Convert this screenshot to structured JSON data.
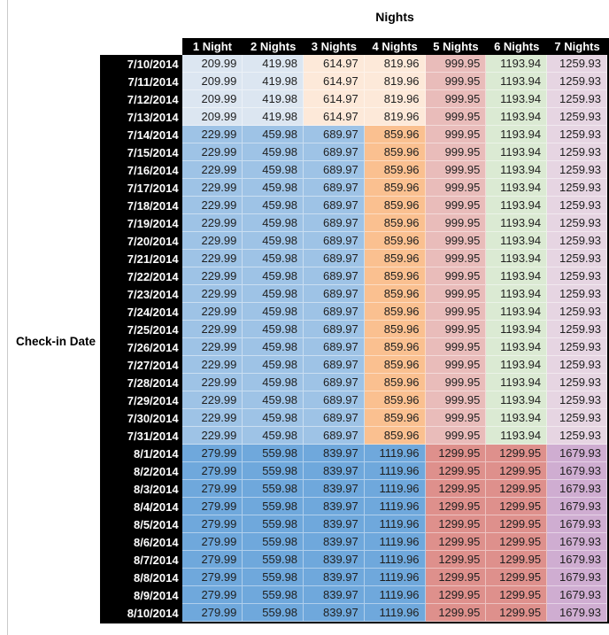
{
  "chart_data": {
    "type": "table",
    "title": "Nights",
    "row_axis_label": "Check-in Date",
    "columns": [
      "1 Night",
      "2 Nights",
      "3 Nights",
      "4 Nights",
      "5 Nights",
      "6 Nights",
      "7 Nights"
    ],
    "rows": [
      {
        "date": "7/10/2014",
        "band": "early_july",
        "values": [
          209.99,
          419.98,
          614.97,
          819.96,
          999.95,
          1193.94,
          1259.93
        ]
      },
      {
        "date": "7/11/2014",
        "band": "early_july",
        "values": [
          209.99,
          419.98,
          614.97,
          819.96,
          999.95,
          1193.94,
          1259.93
        ]
      },
      {
        "date": "7/12/2014",
        "band": "early_july",
        "values": [
          209.99,
          419.98,
          614.97,
          819.96,
          999.95,
          1193.94,
          1259.93
        ]
      },
      {
        "date": "7/13/2014",
        "band": "early_july",
        "values": [
          209.99,
          419.98,
          614.97,
          819.96,
          999.95,
          1193.94,
          1259.93
        ]
      },
      {
        "date": "7/14/2014",
        "band": "mid_july",
        "values": [
          229.99,
          459.98,
          689.97,
          859.96,
          999.95,
          1193.94,
          1259.93
        ]
      },
      {
        "date": "7/15/2014",
        "band": "mid_july",
        "values": [
          229.99,
          459.98,
          689.97,
          859.96,
          999.95,
          1193.94,
          1259.93
        ]
      },
      {
        "date": "7/16/2014",
        "band": "mid_july",
        "values": [
          229.99,
          459.98,
          689.97,
          859.96,
          999.95,
          1193.94,
          1259.93
        ]
      },
      {
        "date": "7/17/2014",
        "band": "mid_july",
        "values": [
          229.99,
          459.98,
          689.97,
          859.96,
          999.95,
          1193.94,
          1259.93
        ]
      },
      {
        "date": "7/18/2014",
        "band": "mid_july",
        "values": [
          229.99,
          459.98,
          689.97,
          859.96,
          999.95,
          1193.94,
          1259.93
        ]
      },
      {
        "date": "7/19/2014",
        "band": "mid_july",
        "values": [
          229.99,
          459.98,
          689.97,
          859.96,
          999.95,
          1193.94,
          1259.93
        ]
      },
      {
        "date": "7/20/2014",
        "band": "mid_july",
        "values": [
          229.99,
          459.98,
          689.97,
          859.96,
          999.95,
          1193.94,
          1259.93
        ]
      },
      {
        "date": "7/21/2014",
        "band": "mid_july",
        "values": [
          229.99,
          459.98,
          689.97,
          859.96,
          999.95,
          1193.94,
          1259.93
        ]
      },
      {
        "date": "7/22/2014",
        "band": "mid_july",
        "values": [
          229.99,
          459.98,
          689.97,
          859.96,
          999.95,
          1193.94,
          1259.93
        ]
      },
      {
        "date": "7/23/2014",
        "band": "mid_july",
        "values": [
          229.99,
          459.98,
          689.97,
          859.96,
          999.95,
          1193.94,
          1259.93
        ]
      },
      {
        "date": "7/24/2014",
        "band": "mid_july",
        "values": [
          229.99,
          459.98,
          689.97,
          859.96,
          999.95,
          1193.94,
          1259.93
        ]
      },
      {
        "date": "7/25/2014",
        "band": "mid_july",
        "values": [
          229.99,
          459.98,
          689.97,
          859.96,
          999.95,
          1193.94,
          1259.93
        ]
      },
      {
        "date": "7/26/2014",
        "band": "mid_july",
        "values": [
          229.99,
          459.98,
          689.97,
          859.96,
          999.95,
          1193.94,
          1259.93
        ]
      },
      {
        "date": "7/27/2014",
        "band": "mid_july",
        "values": [
          229.99,
          459.98,
          689.97,
          859.96,
          999.95,
          1193.94,
          1259.93
        ]
      },
      {
        "date": "7/28/2014",
        "band": "mid_july",
        "values": [
          229.99,
          459.98,
          689.97,
          859.96,
          999.95,
          1193.94,
          1259.93
        ]
      },
      {
        "date": "7/29/2014",
        "band": "mid_july",
        "values": [
          229.99,
          459.98,
          689.97,
          859.96,
          999.95,
          1193.94,
          1259.93
        ]
      },
      {
        "date": "7/30/2014",
        "band": "mid_july",
        "values": [
          229.99,
          459.98,
          689.97,
          859.96,
          999.95,
          1193.94,
          1259.93
        ]
      },
      {
        "date": "7/31/2014",
        "band": "mid_july",
        "values": [
          229.99,
          459.98,
          689.97,
          859.96,
          999.95,
          1193.94,
          1259.93
        ]
      },
      {
        "date": "8/1/2014",
        "band": "august",
        "values": [
          279.99,
          559.98,
          839.97,
          1119.96,
          1299.95,
          1299.95,
          1679.93
        ]
      },
      {
        "date": "8/2/2014",
        "band": "august",
        "values": [
          279.99,
          559.98,
          839.97,
          1119.96,
          1299.95,
          1299.95,
          1679.93
        ]
      },
      {
        "date": "8/3/2014",
        "band": "august",
        "values": [
          279.99,
          559.98,
          839.97,
          1119.96,
          1299.95,
          1299.95,
          1679.93
        ]
      },
      {
        "date": "8/4/2014",
        "band": "august",
        "values": [
          279.99,
          559.98,
          839.97,
          1119.96,
          1299.95,
          1299.95,
          1679.93
        ]
      },
      {
        "date": "8/5/2014",
        "band": "august",
        "values": [
          279.99,
          559.98,
          839.97,
          1119.96,
          1299.95,
          1299.95,
          1679.93
        ]
      },
      {
        "date": "8/6/2014",
        "band": "august",
        "values": [
          279.99,
          559.98,
          839.97,
          1119.96,
          1299.95,
          1299.95,
          1679.93
        ]
      },
      {
        "date": "8/7/2014",
        "band": "august",
        "values": [
          279.99,
          559.98,
          839.97,
          1119.96,
          1299.95,
          1299.95,
          1679.93
        ]
      },
      {
        "date": "8/8/2014",
        "band": "august",
        "values": [
          279.99,
          559.98,
          839.97,
          1119.96,
          1299.95,
          1299.95,
          1679.93
        ]
      },
      {
        "date": "8/9/2014",
        "band": "august",
        "values": [
          279.99,
          559.98,
          839.97,
          1119.96,
          1299.95,
          1299.95,
          1679.93
        ]
      },
      {
        "date": "8/10/2014",
        "band": "august",
        "values": [
          279.99,
          559.98,
          839.97,
          1119.96,
          1299.95,
          1299.95,
          1679.93
        ]
      }
    ]
  },
  "format": {
    "header_bg": "#000000",
    "header_text_color": "#ffffff",
    "value_text_color": "#1f1f1f",
    "outer_border_color": "#000000",
    "cell_divider_color": "rgba(255,255,255,0.45)",
    "sheet_gridline_color": "#cacaca",
    "bands": {
      "early_july": [
        "#dce6f1",
        "#dce6f1",
        "#fde9d9",
        "#fde9d9",
        "#e9bcba",
        "#dbead3",
        "#e6d5e2"
      ],
      "mid_july": [
        "#9ec3e6",
        "#9ec3e6",
        "#9ec3e6",
        "#fac090",
        "#e9bcba",
        "#dbead3",
        "#e6d5e2"
      ],
      "august": [
        "#6fa8dc",
        "#6fa8dc",
        "#6fa8dc",
        "#6fa8dc",
        "#de908c",
        "#de908c",
        "#cfadd1"
      ]
    }
  }
}
